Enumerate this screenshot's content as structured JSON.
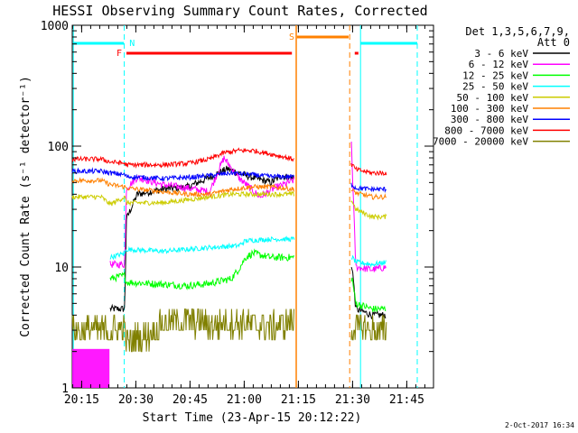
{
  "chart_data": {
    "type": "line",
    "title": "HESSI Observing Summary Count Rates, Corrected",
    "xlabel": "Start Time (23-Apr-15 20:12:22)",
    "ylabel": "Corrected Count Rate (s⁻¹ detector⁻¹)",
    "x_range_minutes": [
      0,
      100
    ],
    "ylim": [
      1,
      1000
    ],
    "y_scale": "log",
    "x_ticks": [
      {
        "t": 2.6,
        "label": "20:15"
      },
      {
        "t": 17.6,
        "label": "20:30"
      },
      {
        "t": 32.6,
        "label": "20:45"
      },
      {
        "t": 47.6,
        "label": "21:00"
      },
      {
        "t": 62.6,
        "label": "21:15"
      },
      {
        "t": 77.6,
        "label": "21:30"
      },
      {
        "t": 92.6,
        "label": "21:45"
      }
    ],
    "y_ticks": [
      {
        "v": 1,
        "label": "1"
      },
      {
        "v": 10,
        "label": "10"
      },
      {
        "v": 100,
        "label": "100"
      },
      {
        "v": 1000,
        "label": "1000"
      }
    ],
    "legend": {
      "header": [
        "Det 1,3,5,6,7,9,",
        "Att 0"
      ],
      "placement": "right"
    },
    "footer_date": "2-Oct-2017 16:34",
    "series": [
      {
        "name": "3 - 6 keV",
        "color": "#000000",
        "points": [
          [
            10.5,
            4.5
          ],
          [
            14.5,
            4.5
          ],
          [
            15,
            25
          ],
          [
            18,
            40
          ],
          [
            25,
            44
          ],
          [
            32,
            46
          ],
          [
            38,
            55
          ],
          [
            43,
            65
          ],
          [
            46,
            60
          ],
          [
            50,
            55
          ],
          [
            55,
            50
          ],
          [
            58,
            57
          ],
          [
            60,
            55
          ],
          [
            61.3,
            55
          ],
          [
            77.5,
            10
          ],
          [
            78.5,
            4.5
          ],
          [
            83,
            4
          ],
          [
            87,
            4
          ]
        ]
      },
      {
        "name": "6 - 12 keV",
        "color": "#ff00ff",
        "points": [
          [
            10.5,
            10.5
          ],
          [
            14.5,
            10.5
          ],
          [
            15,
            45
          ],
          [
            18,
            55
          ],
          [
            25,
            48
          ],
          [
            32,
            45
          ],
          [
            38,
            42
          ],
          [
            42,
            80
          ],
          [
            46,
            55
          ],
          [
            52,
            38
          ],
          [
            56,
            45
          ],
          [
            61.3,
            52
          ],
          [
            77.2,
            130
          ],
          [
            77.6,
            55
          ],
          [
            78.5,
            10
          ],
          [
            83,
            9.5
          ],
          [
            87,
            10
          ]
        ]
      },
      {
        "name": "12 - 25 keV",
        "color": "#00ff00",
        "points": [
          [
            10.5,
            8
          ],
          [
            14.5,
            8.5
          ],
          [
            15,
            7.5
          ],
          [
            25,
            7.2
          ],
          [
            32,
            7
          ],
          [
            38,
            7.3
          ],
          [
            44,
            8
          ],
          [
            46,
            9.5
          ],
          [
            48,
            12
          ],
          [
            50,
            13
          ],
          [
            55,
            12
          ],
          [
            61.3,
            12
          ],
          [
            77.5,
            8
          ],
          [
            78.5,
            5
          ],
          [
            83,
            4.5
          ],
          [
            87,
            4.5
          ]
        ]
      },
      {
        "name": "25 - 50 keV",
        "color": "#00ffff",
        "points": [
          [
            10.5,
            12
          ],
          [
            14.5,
            13
          ],
          [
            15,
            14
          ],
          [
            25,
            13.5
          ],
          [
            32,
            14
          ],
          [
            38,
            14.5
          ],
          [
            46,
            15
          ],
          [
            48,
            16.5
          ],
          [
            55,
            17
          ],
          [
            61.3,
            17
          ],
          [
            77.5,
            12
          ],
          [
            78.5,
            11
          ],
          [
            83,
            10.5
          ],
          [
            87,
            11
          ]
        ]
      },
      {
        "name": "50 - 100 keV",
        "color": "#cccc00",
        "points": [
          [
            0,
            38
          ],
          [
            8,
            38
          ],
          [
            10.5,
            33
          ],
          [
            14.5,
            38
          ],
          [
            15,
            34
          ],
          [
            25,
            34
          ],
          [
            32,
            36
          ],
          [
            38,
            38
          ],
          [
            44,
            40
          ],
          [
            50,
            40
          ],
          [
            55,
            40
          ],
          [
            61.3,
            40
          ],
          [
            77.5,
            35
          ],
          [
            78.5,
            30
          ],
          [
            83,
            26
          ],
          [
            87,
            26
          ]
        ]
      },
      {
        "name": "100 - 300 keV",
        "color": "#ff8000",
        "points": [
          [
            0,
            52
          ],
          [
            8,
            52
          ],
          [
            10.5,
            48
          ],
          [
            14.5,
            46
          ],
          [
            15,
            45
          ],
          [
            25,
            42
          ],
          [
            32,
            40
          ],
          [
            38,
            40
          ],
          [
            44,
            44
          ],
          [
            50,
            46
          ],
          [
            55,
            46
          ],
          [
            61.3,
            44
          ],
          [
            77.5,
            43
          ],
          [
            78.5,
            41
          ],
          [
            83,
            38
          ],
          [
            87,
            38
          ]
        ]
      },
      {
        "name": "300 - 800 keV",
        "color": "#0000ff",
        "points": [
          [
            0,
            62
          ],
          [
            8,
            62
          ],
          [
            10.5,
            60
          ],
          [
            14.5,
            58
          ],
          [
            15,
            56
          ],
          [
            25,
            54
          ],
          [
            32,
            55
          ],
          [
            38,
            57
          ],
          [
            44,
            60
          ],
          [
            50,
            58
          ],
          [
            55,
            56
          ],
          [
            61.3,
            56
          ],
          [
            77.5,
            48
          ],
          [
            78.5,
            45
          ],
          [
            83,
            44
          ],
          [
            87,
            44
          ]
        ]
      },
      {
        "name": "800 - 7000 keV",
        "color": "#ff0000",
        "points": [
          [
            0,
            78
          ],
          [
            8,
            78
          ],
          [
            10.5,
            74
          ],
          [
            14.5,
            72
          ],
          [
            15,
            70
          ],
          [
            25,
            70
          ],
          [
            32,
            72
          ],
          [
            38,
            78
          ],
          [
            42,
            88
          ],
          [
            46,
            92
          ],
          [
            50,
            92
          ],
          [
            55,
            86
          ],
          [
            61.3,
            78
          ],
          [
            77.5,
            70
          ],
          [
            78.5,
            64
          ],
          [
            83,
            60
          ],
          [
            87,
            60
          ]
        ]
      },
      {
        "name": "7000 - 20000 keV",
        "color": "#808000",
        "points": [
          [
            0,
            3
          ],
          [
            8,
            3
          ],
          [
            10.5,
            3
          ],
          [
            14.5,
            3
          ],
          [
            15,
            2.5
          ],
          [
            20,
            2.6
          ],
          [
            25,
            3.4
          ],
          [
            32,
            3.6
          ],
          [
            38,
            3.3
          ],
          [
            44,
            3.5
          ],
          [
            50,
            3.4
          ],
          [
            55,
            3.2
          ],
          [
            61.3,
            3.5
          ],
          [
            77.5,
            3
          ],
          [
            78.5,
            3.2
          ],
          [
            83,
            3
          ],
          [
            87,
            3
          ]
        ]
      }
    ],
    "markers": [
      {
        "label": "N",
        "color": "#00ffff",
        "t": 14.8
      },
      {
        "label": "F",
        "color": "#ff0000",
        "t": 15
      },
      {
        "label": "S",
        "color": "#ff8000",
        "t": 62
      }
    ]
  }
}
